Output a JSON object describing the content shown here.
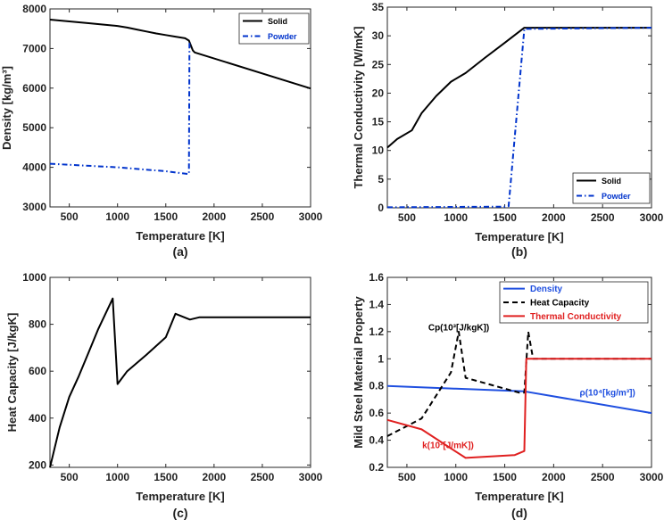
{
  "chart_data": [
    {
      "panel": "(a)",
      "type": "line",
      "xlabel": "Temperature [K]",
      "ylabel": "Density [kg/m³]",
      "xlim": [
        300,
        3000
      ],
      "ylim": [
        3000,
        8000
      ],
      "xticks": [
        500,
        1000,
        1500,
        2000,
        2500,
        3000
      ],
      "yticks": [
        3000,
        4000,
        5000,
        6000,
        7000,
        8000
      ],
      "legend": "top-right",
      "grid": false,
      "series": [
        {
          "name": "Solid",
          "color": "#000000",
          "dash": "solid",
          "x": [
            300,
            700,
            1000,
            1100,
            1200,
            1300,
            1400,
            1500,
            1600,
            1700,
            1740,
            1780,
            1800,
            3000
          ],
          "y": [
            7730,
            7640,
            7570,
            7530,
            7480,
            7430,
            7380,
            7340,
            7300,
            7260,
            7200,
            6950,
            6900,
            5990
          ]
        },
        {
          "name": "Powder",
          "color": "#0033cc",
          "dash": "dashdot",
          "x": [
            300,
            1000,
            1500,
            1730,
            1740,
            1745
          ],
          "y": [
            4090,
            4000,
            3900,
            3830,
            3830,
            7200
          ]
        }
      ]
    },
    {
      "panel": "(b)",
      "type": "line",
      "xlabel": "Temperature [K]",
      "ylabel": "Thermal Conductivity [W/mK]",
      "xlim": [
        300,
        3000
      ],
      "ylim": [
        0,
        35
      ],
      "xticks": [
        500,
        1000,
        1500,
        2000,
        2500,
        3000
      ],
      "yticks": [
        0,
        5,
        10,
        15,
        20,
        25,
        30,
        35
      ],
      "legend": "bottom-right",
      "grid": false,
      "series": [
        {
          "name": "Solid",
          "color": "#000000",
          "dash": "solid",
          "x": [
            300,
            400,
            550,
            650,
            800,
            950,
            1100,
            1300,
            1500,
            1700,
            3000
          ],
          "y": [
            10.5,
            12,
            13.5,
            16.5,
            19.5,
            22,
            23.5,
            26.2,
            28.8,
            31.4,
            31.4
          ]
        },
        {
          "name": "Powder",
          "color": "#0033cc",
          "dash": "dashdot",
          "x": [
            300,
            1500,
            1540,
            1700,
            3000
          ],
          "y": [
            0.1,
            0.2,
            0.3,
            31.2,
            31.4
          ]
        }
      ]
    },
    {
      "panel": "(c)",
      "type": "line",
      "xlabel": "Temperature [K]",
      "ylabel": "Heat Capacity [J/kgK]",
      "xlim": [
        300,
        3000
      ],
      "ylim": [
        190,
        1000
      ],
      "xticks": [
        500,
        1000,
        1500,
        2000,
        2500,
        3000
      ],
      "yticks": [
        200,
        400,
        600,
        800,
        1000
      ],
      "grid": false,
      "series": [
        {
          "color": "#000000",
          "dash": "solid",
          "x": [
            300,
            400,
            500,
            600,
            700,
            800,
            950,
            1000,
            1100,
            1300,
            1500,
            1600,
            1750,
            1850,
            3000
          ],
          "y": [
            190,
            360,
            490,
            580,
            680,
            780,
            910,
            545,
            600,
            670,
            745,
            845,
            820,
            830,
            830
          ]
        }
      ]
    },
    {
      "panel": "(d)",
      "type": "line",
      "xlabel": "Temperature [K]",
      "ylabel": "Mild Steel Material Property",
      "xlim": [
        300,
        3000
      ],
      "ylim": [
        0.2,
        1.6
      ],
      "xticks": [
        500,
        1000,
        1500,
        2000,
        2500,
        3000
      ],
      "yticks": [
        0.2,
        0.4,
        0.6,
        0.8,
        1.0,
        1.2,
        1.4,
        1.6
      ],
      "legend": "top-right",
      "grid": false,
      "series": [
        {
          "name": "Density",
          "color": "#1f4fe0",
          "dash": "solid",
          "x": [
            300,
            1000,
            1700,
            3000
          ],
          "y": [
            0.8,
            0.78,
            0.76,
            0.6
          ]
        },
        {
          "name": "Heat Capacity",
          "color": "#000000",
          "dash": "dashed",
          "x": [
            300,
            650,
            950,
            1030,
            1100,
            1650,
            1700,
            1740,
            1790,
            3000
          ],
          "y": [
            0.43,
            0.56,
            0.9,
            1.2,
            0.86,
            0.75,
            0.75,
            1.2,
            1.0,
            1.0
          ]
        },
        {
          "name": "Thermal Conductivity",
          "color": "#e02020",
          "dash": "solid",
          "x": [
            300,
            650,
            1100,
            1600,
            1700,
            1720,
            3000
          ],
          "y": [
            0.55,
            0.48,
            0.27,
            0.29,
            0.32,
            1.0,
            1.0
          ]
        }
      ],
      "annotations": [
        {
          "text": "Cp(10³[J/kgK])",
          "x": 1030,
          "y": 1.21,
          "color": "#000000"
        },
        {
          "text": "ρ(10⁴[kg/m³])",
          "x": 2550,
          "y": 0.73,
          "color": "#1f4fe0"
        },
        {
          "text": "k(10²[J/mK])",
          "x": 920,
          "y": 0.34,
          "color": "#e02020"
        }
      ]
    }
  ]
}
